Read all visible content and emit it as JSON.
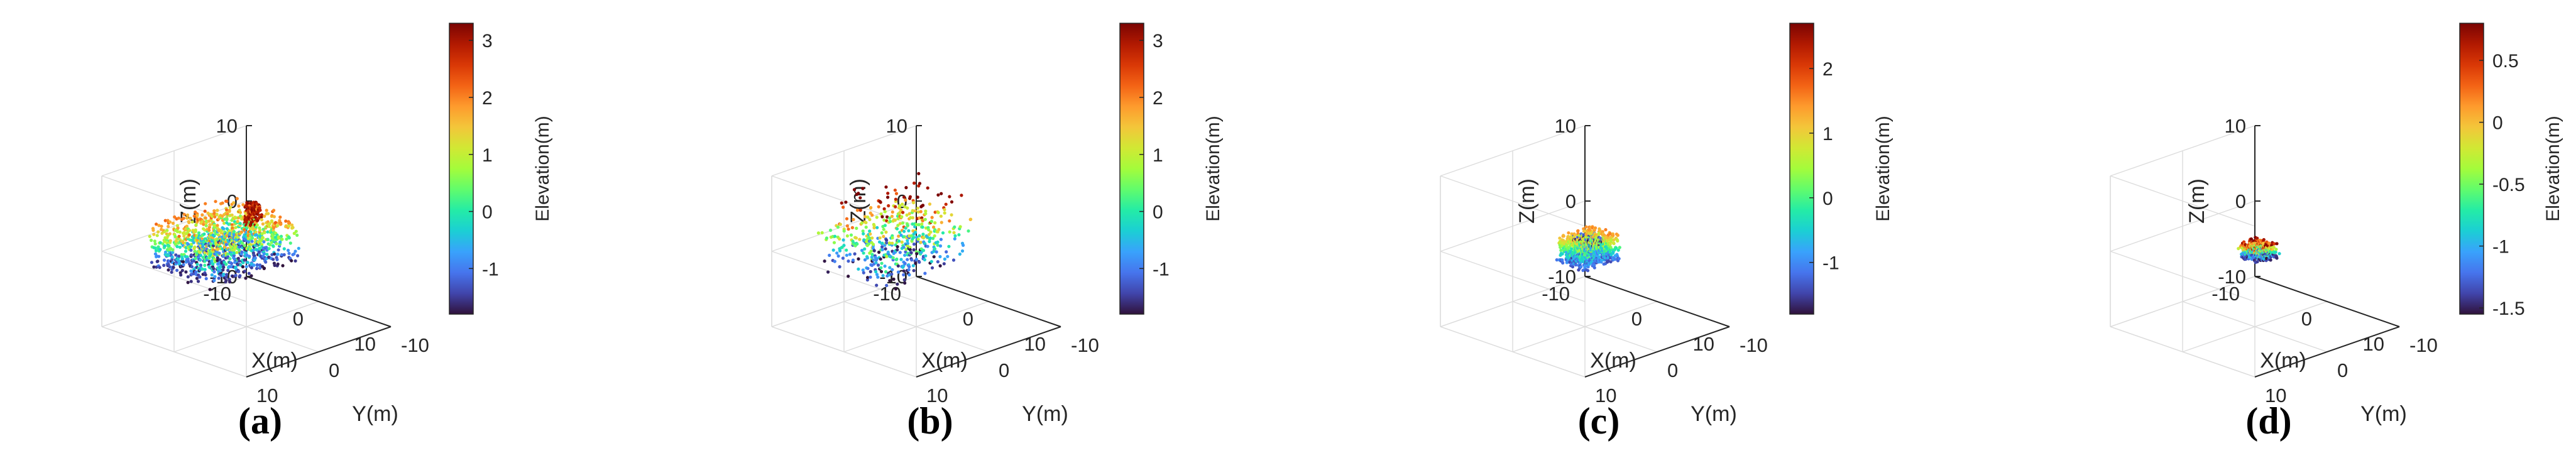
{
  "colors": {
    "colormap": [
      "#30123b",
      "#4145ab",
      "#4675ed",
      "#39a2fc",
      "#1bcfd4",
      "#24eca6",
      "#61fc6c",
      "#a4fc3b",
      "#d1e834",
      "#f3c63a",
      "#fe9b2d",
      "#f36315",
      "#d93806",
      "#b11901",
      "#7a0403"
    ],
    "axis": "#262626",
    "grid": "#dcdcdc"
  },
  "chart_data": [
    {
      "type": "scatter",
      "panel": "(a)",
      "xlabel": "X(m)",
      "ylabel": "Y(m)",
      "zlabel": "Z(m)",
      "xticks": [
        "-10",
        "0",
        "10"
      ],
      "yticks": [
        "-10",
        "0",
        "10"
      ],
      "zticks": [
        "10",
        "0",
        "-10"
      ],
      "xlim": [
        -10,
        10
      ],
      "ylim": [
        -10,
        10
      ],
      "zlim": [
        -10,
        10
      ],
      "colorbar": {
        "label": "Elevation(m)",
        "ticks": [
          "3",
          "2",
          "1",
          "0",
          "-1"
        ],
        "range": [
          -1.8,
          3.3
        ]
      },
      "grid": true,
      "shape": "wall",
      "point_count": 1400
    },
    {
      "type": "scatter",
      "panel": "(b)",
      "xlabel": "X(m)",
      "ylabel": "Y(m)",
      "zlabel": "Z(m)",
      "xticks": [
        "-10",
        "0",
        "10"
      ],
      "yticks": [
        "-10",
        "0",
        "10"
      ],
      "zticks": [
        "10",
        "0",
        "-10"
      ],
      "xlim": [
        -10,
        10
      ],
      "ylim": [
        -10,
        10
      ],
      "zlim": [
        -10,
        10
      ],
      "colorbar": {
        "label": "Elevation(m)",
        "ticks": [
          "3",
          "2",
          "1",
          "0",
          "-1"
        ],
        "range": [
          -1.8,
          3.3
        ]
      },
      "grid": true,
      "shape": "sparse",
      "point_count": 520
    },
    {
      "type": "scatter",
      "panel": "(c)",
      "xlabel": "X(m)",
      "ylabel": "Y(m)",
      "zlabel": "Z(m)",
      "xticks": [
        "-10",
        "0",
        "10"
      ],
      "yticks": [
        "-10",
        "0",
        "10"
      ],
      "zticks": [
        "10",
        "0",
        "-10"
      ],
      "xlim": [
        -10,
        10
      ],
      "ylim": [
        -10,
        10
      ],
      "zlim": [
        -10,
        10
      ],
      "colorbar": {
        "label": "Elevation(m)",
        "ticks": [
          "2",
          "1",
          "0",
          "-1"
        ],
        "range": [
          -1.8,
          2.7
        ]
      },
      "grid": true,
      "shape": "block",
      "point_count": 900
    },
    {
      "type": "scatter",
      "panel": "(d)",
      "xlabel": "X(m)",
      "ylabel": "Y(m)",
      "zlabel": "Z(m)",
      "xticks": [
        "-10",
        "0",
        "10"
      ],
      "yticks": [
        "-10",
        "0",
        "10"
      ],
      "zticks": [
        "10",
        "0",
        "-10"
      ],
      "xlim": [
        -10,
        10
      ],
      "ylim": [
        -10,
        10
      ],
      "zlim": [
        -10,
        10
      ],
      "colorbar": {
        "label": "Elevation(m)",
        "ticks": [
          "0.5",
          "0",
          "-0.5",
          "-1",
          "-1.5"
        ],
        "range": [
          -1.55,
          0.8
        ]
      },
      "grid": true,
      "shape": "small",
      "point_count": 380
    }
  ]
}
